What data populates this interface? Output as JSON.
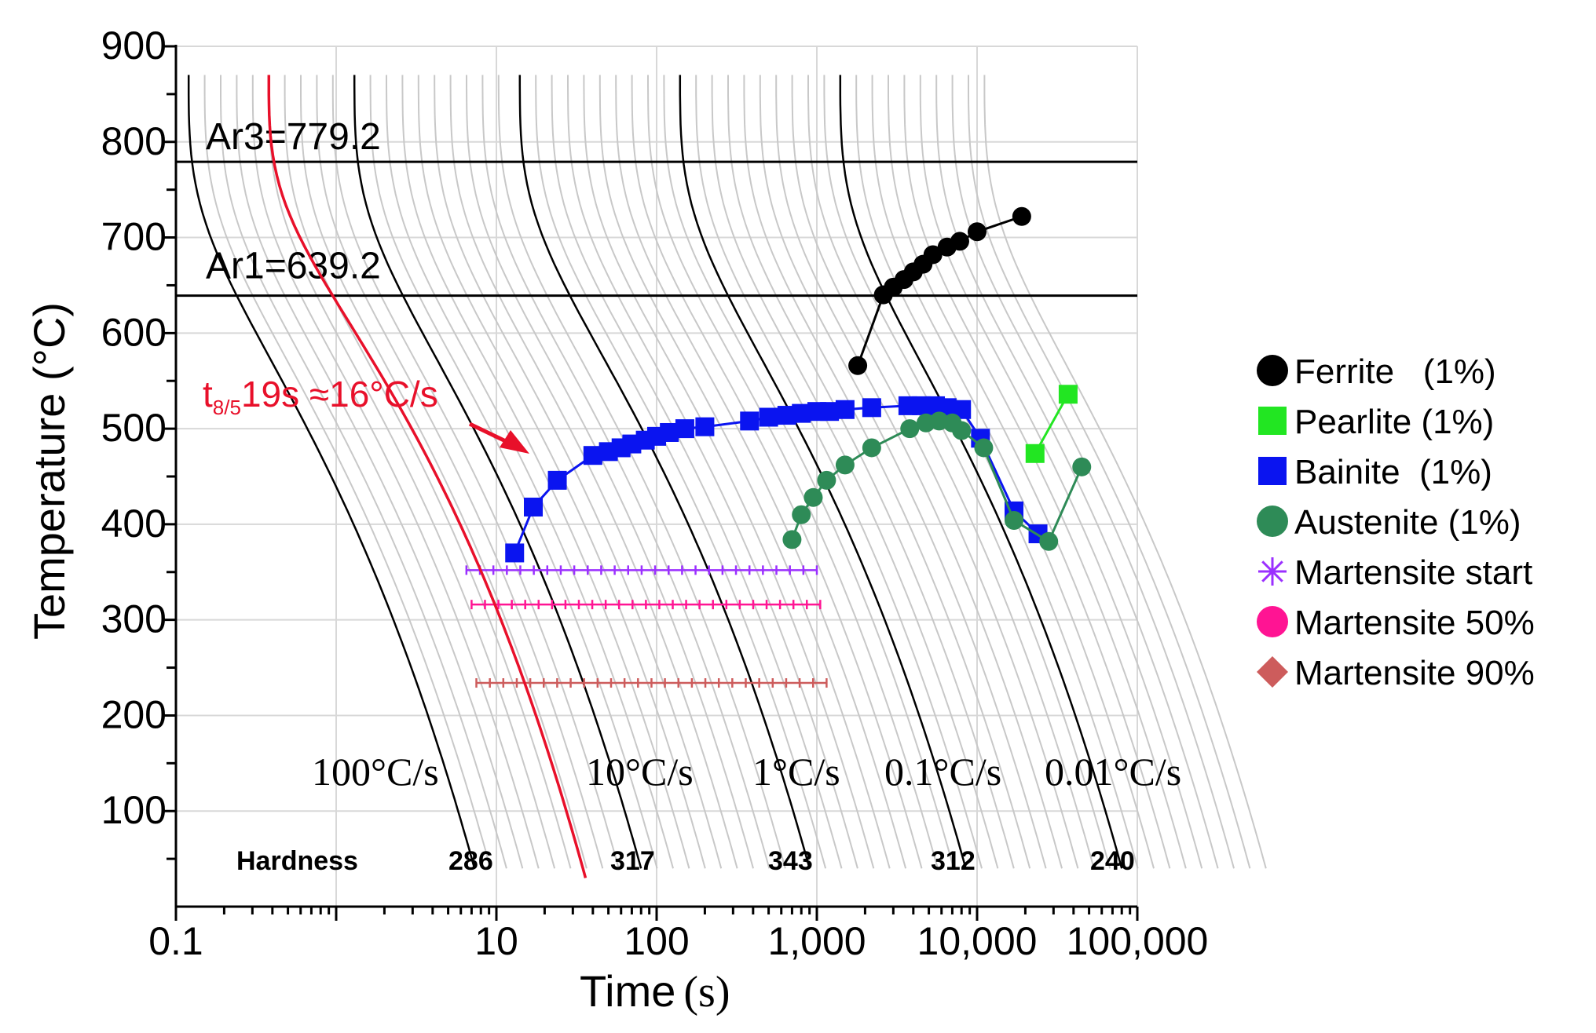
{
  "chart_data": {
    "type": "line",
    "title": "",
    "xlabel": "Time",
    "xlabel_unit": "(s)",
    "ylabel": "Temperature (°C)",
    "x_scale": "log",
    "xlim": [
      0.1,
      100000
    ],
    "ylim": [
      0,
      900
    ],
    "x_tick_values": [
      0.1,
      10,
      100,
      1000,
      10000,
      100000
    ],
    "x_tick_labels": [
      "0.1",
      "10",
      "100",
      "1,000",
      "10,000",
      "100,000"
    ],
    "y_ticks": [
      100,
      200,
      300,
      400,
      500,
      600,
      700,
      800,
      900
    ],
    "grid": true,
    "critical_temps": [
      {
        "name": "Ar3",
        "label": "Ar3=779.2",
        "value": 779.2
      },
      {
        "name": "Ar1",
        "label": "Ar1=639.2",
        "value": 639.2
      }
    ],
    "annotation": {
      "text_t": "t",
      "text_sub": "8/5",
      "text_rest": "19s ≈16°C/s",
      "color": "#e8102a",
      "weld_curve_t85_s": 19
    },
    "cooling_rates": {
      "labels": [
        "100°C/s",
        "10°C/s",
        "1°C/s",
        "0.1°C/s",
        "0.01°C/s"
      ],
      "start_times_s": [
        0.12,
        1.3,
        14,
        140,
        1400
      ],
      "end_times_s": [
        7.3,
        80,
        900,
        8500,
        80000
      ]
    },
    "hardness": {
      "label": "Hardness",
      "values": [
        "286",
        "317",
        "343",
        "312",
        "240"
      ]
    },
    "series": [
      {
        "name": "Ferrite",
        "legend": "Ferrite   (1%)",
        "marker": "circle",
        "color": "#000000",
        "points": [
          [
            1800,
            566
          ],
          [
            2600,
            640
          ],
          [
            3000,
            648
          ],
          [
            3500,
            656
          ],
          [
            4000,
            664
          ],
          [
            4600,
            672
          ],
          [
            5300,
            682
          ],
          [
            6500,
            690
          ],
          [
            7800,
            696
          ],
          [
            10000,
            706
          ],
          [
            19000,
            722
          ]
        ]
      },
      {
        "name": "Pearlite",
        "legend": "Pearlite (1%)",
        "marker": "square",
        "color": "#22e622",
        "points": [
          [
            23000,
            474
          ],
          [
            37000,
            536
          ]
        ]
      },
      {
        "name": "Bainite",
        "legend": "Bainite  (1%)",
        "marker": "square",
        "color": "#0a14f0",
        "points": [
          [
            13,
            370
          ],
          [
            17,
            418
          ],
          [
            24,
            446
          ],
          [
            40,
            472
          ],
          [
            50,
            476
          ],
          [
            60,
            480
          ],
          [
            70,
            484
          ],
          [
            85,
            488
          ],
          [
            100,
            492
          ],
          [
            120,
            496
          ],
          [
            150,
            500
          ],
          [
            200,
            502
          ],
          [
            380,
            508
          ],
          [
            500,
            512
          ],
          [
            650,
            514
          ],
          [
            800,
            516
          ],
          [
            1000,
            518
          ],
          [
            1200,
            518
          ],
          [
            1500,
            520
          ],
          [
            2200,
            522
          ],
          [
            3700,
            524
          ],
          [
            4500,
            524
          ],
          [
            5500,
            524
          ],
          [
            6500,
            522
          ],
          [
            8000,
            520
          ],
          [
            10500,
            490
          ],
          [
            17000,
            414
          ],
          [
            24000,
            390
          ]
        ]
      },
      {
        "name": "Austenite",
        "legend": "Austenite (1%)",
        "marker": "circle",
        "color": "#2e8b57",
        "points": [
          [
            700,
            384
          ],
          [
            800,
            410
          ],
          [
            950,
            428
          ],
          [
            1150,
            446
          ],
          [
            1500,
            462
          ],
          [
            2200,
            480
          ],
          [
            3800,
            500
          ],
          [
            4800,
            506
          ],
          [
            5800,
            508
          ],
          [
            7000,
            506
          ],
          [
            8000,
            498
          ],
          [
            11000,
            480
          ],
          [
            17000,
            404
          ],
          [
            28000,
            382
          ],
          [
            45000,
            460
          ]
        ]
      },
      {
        "name": "Martensite start",
        "legend": "Martensite start",
        "marker": "star",
        "color": "#9b30ff",
        "value": 352,
        "x_range": [
          6.5,
          1000
        ]
      },
      {
        "name": "Martensite 50%",
        "legend": "Martensite 50%",
        "marker": "circle",
        "color": "#ff1493",
        "value": 316,
        "x_range": [
          7,
          1050
        ]
      },
      {
        "name": "Martensite 90%",
        "legend": "Martensite 90%",
        "marker": "diamond",
        "color": "#cd5c5c",
        "value": 234,
        "x_range": [
          7.5,
          1150
        ]
      }
    ]
  }
}
